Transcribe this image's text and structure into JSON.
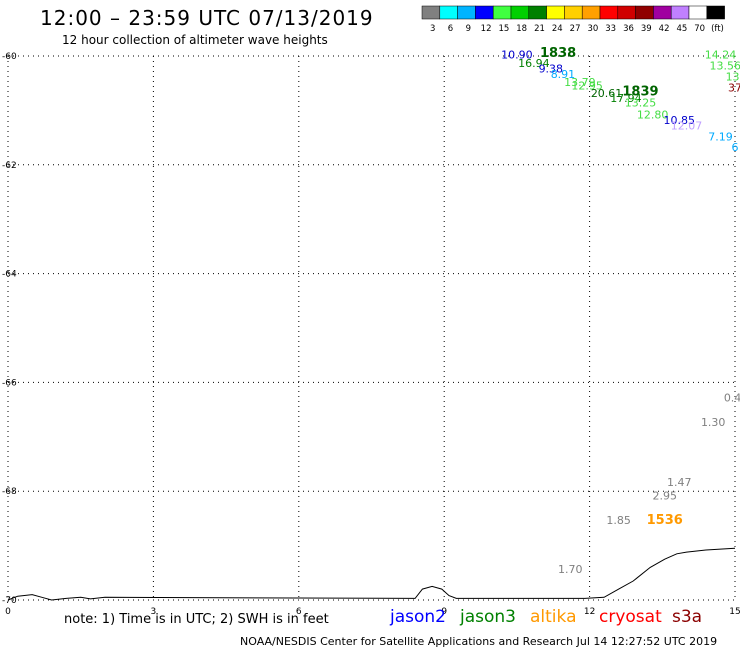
{
  "header": {
    "title": "12:00 – 23:59 UTC 07/13/2019",
    "subtitle": "12 hour collection of altimeter wave heights"
  },
  "colorbar": {
    "colors": [
      "#808080",
      "#00ffff",
      "#00b4ff",
      "#0000ff",
      "#40ff40",
      "#00d000",
      "#008000",
      "#ffff00",
      "#ffd000",
      "#ffa000",
      "#ff0000",
      "#d00000",
      "#900000",
      "#a000a0",
      "#c080ff",
      "#ffffff",
      "#000000"
    ],
    "labels": [
      "3",
      "6",
      "9",
      "12",
      "15",
      "18",
      "21",
      "24",
      "27",
      "30",
      "33",
      "36",
      "39",
      "42",
      "45",
      "70",
      "(ft)"
    ]
  },
  "chart_data": {
    "type": "scatter",
    "x_axis": {
      "range": [
        0,
        15
      ],
      "ticks": [
        "0",
        "3",
        "6",
        "9",
        "12",
        "15"
      ]
    },
    "y_axis": {
      "range": [
        -70,
        -60
      ],
      "ticks": [
        "-60",
        "-62",
        "-64",
        "-66",
        "-68",
        "-70"
      ]
    },
    "grid": true,
    "points": [
      {
        "lon": 10.5,
        "lat": -60.05,
        "label": "10.90",
        "color": "#0000cc"
      },
      {
        "lon": 11.35,
        "lat": -60.02,
        "label": "1838",
        "color": "#006400",
        "bold": true
      },
      {
        "lon": 10.85,
        "lat": -60.2,
        "label": "16.94",
        "color": "#008000"
      },
      {
        "lon": 11.2,
        "lat": -60.3,
        "label": "9.38",
        "color": "#0000cc"
      },
      {
        "lon": 11.45,
        "lat": -60.4,
        "label": "8.91",
        "color": "#00aaff"
      },
      {
        "lon": 11.8,
        "lat": -60.55,
        "label": "13.79",
        "color": "#44dd44"
      },
      {
        "lon": 11.95,
        "lat": -60.62,
        "label": "12.95",
        "color": "#44dd44"
      },
      {
        "lon": 12.35,
        "lat": -60.75,
        "label": "20.61",
        "color": "#006400"
      },
      {
        "lon": 13.05,
        "lat": -60.73,
        "label": "1839",
        "color": "#006400",
        "bold": true
      },
      {
        "lon": 12.75,
        "lat": -60.85,
        "label": "17.94",
        "color": "#008000"
      },
      {
        "lon": 13.05,
        "lat": -60.93,
        "label": "13.25",
        "color": "#44dd44"
      },
      {
        "lon": 13.3,
        "lat": -61.15,
        "label": "12.80",
        "color": "#44dd44"
      },
      {
        "lon": 13.85,
        "lat": -61.25,
        "label": "10.85",
        "color": "#0000cc"
      },
      {
        "lon": 14.0,
        "lat": -61.35,
        "label": "12.07",
        "color": "#c0a0ff"
      },
      {
        "lon": 14.7,
        "lat": -61.55,
        "label": "7.19",
        "color": "#00aaff"
      },
      {
        "lon": 15.0,
        "lat": -61.75,
        "label": "6",
        "color": "#00aaff"
      },
      {
        "lon": 14.7,
        "lat": -60.05,
        "label": "14.24",
        "color": "#44dd44"
      },
      {
        "lon": 14.8,
        "lat": -60.25,
        "label": "13.56",
        "color": "#44dd44"
      },
      {
        "lon": 14.95,
        "lat": -60.45,
        "label": "13",
        "color": "#44dd44"
      },
      {
        "lon": 15.0,
        "lat": -60.65,
        "label": "37",
        "color": "#8b0000"
      },
      {
        "lon": 14.95,
        "lat": -66.35,
        "label": "0.4",
        "color": "#808080"
      },
      {
        "lon": 14.55,
        "lat": -66.8,
        "label": "1.30",
        "color": "#808080"
      },
      {
        "lon": 13.85,
        "lat": -67.9,
        "label": "1.47",
        "color": "#808080"
      },
      {
        "lon": 13.55,
        "lat": -68.15,
        "label": "2.95",
        "color": "#808080"
      },
      {
        "lon": 12.6,
        "lat": -68.6,
        "label": "1.85",
        "color": "#808080"
      },
      {
        "lon": 13.55,
        "lat": -68.6,
        "label": "1536",
        "color": "#ff9900",
        "bold": true
      },
      {
        "lon": 11.6,
        "lat": -69.5,
        "label": "1.70",
        "color": "#808080"
      }
    ],
    "coastline": [
      [
        0,
        -70.0
      ],
      [
        0.2,
        -69.93
      ],
      [
        0.5,
        -69.9
      ],
      [
        0.7,
        -69.95
      ],
      [
        0.9,
        -70.0
      ],
      [
        1.2,
        -69.97
      ],
      [
        1.5,
        -69.95
      ],
      [
        1.7,
        -69.98
      ],
      [
        2.0,
        -69.95
      ],
      [
        8.4,
        -69.97
      ],
      [
        8.55,
        -69.8
      ],
      [
        8.75,
        -69.75
      ],
      [
        8.95,
        -69.8
      ],
      [
        9.1,
        -69.92
      ],
      [
        9.25,
        -69.97
      ],
      [
        11.9,
        -69.97
      ],
      [
        12.3,
        -69.95
      ],
      [
        12.6,
        -69.8
      ],
      [
        12.9,
        -69.65
      ],
      [
        13.25,
        -69.4
      ],
      [
        13.55,
        -69.25
      ],
      [
        13.8,
        -69.15
      ],
      [
        14.0,
        -69.12
      ],
      [
        14.4,
        -69.08
      ],
      [
        15.0,
        -69.05
      ]
    ]
  },
  "footer": {
    "note": "note: 1) Time is in UTC; 2) SWH is in feet",
    "satellites": [
      {
        "name": "jason2",
        "color": "#0000ff"
      },
      {
        "name": "jason3",
        "color": "#008000"
      },
      {
        "name": "altika",
        "color": "#ff9900"
      },
      {
        "name": "cryosat",
        "color": "#ff0000"
      },
      {
        "name": "s3a",
        "color": "#8b0000"
      }
    ],
    "credit": "NOAA/NESDIS Center for Satellite Applications and Research    Jul 14 12:27:52 UTC 2019"
  }
}
